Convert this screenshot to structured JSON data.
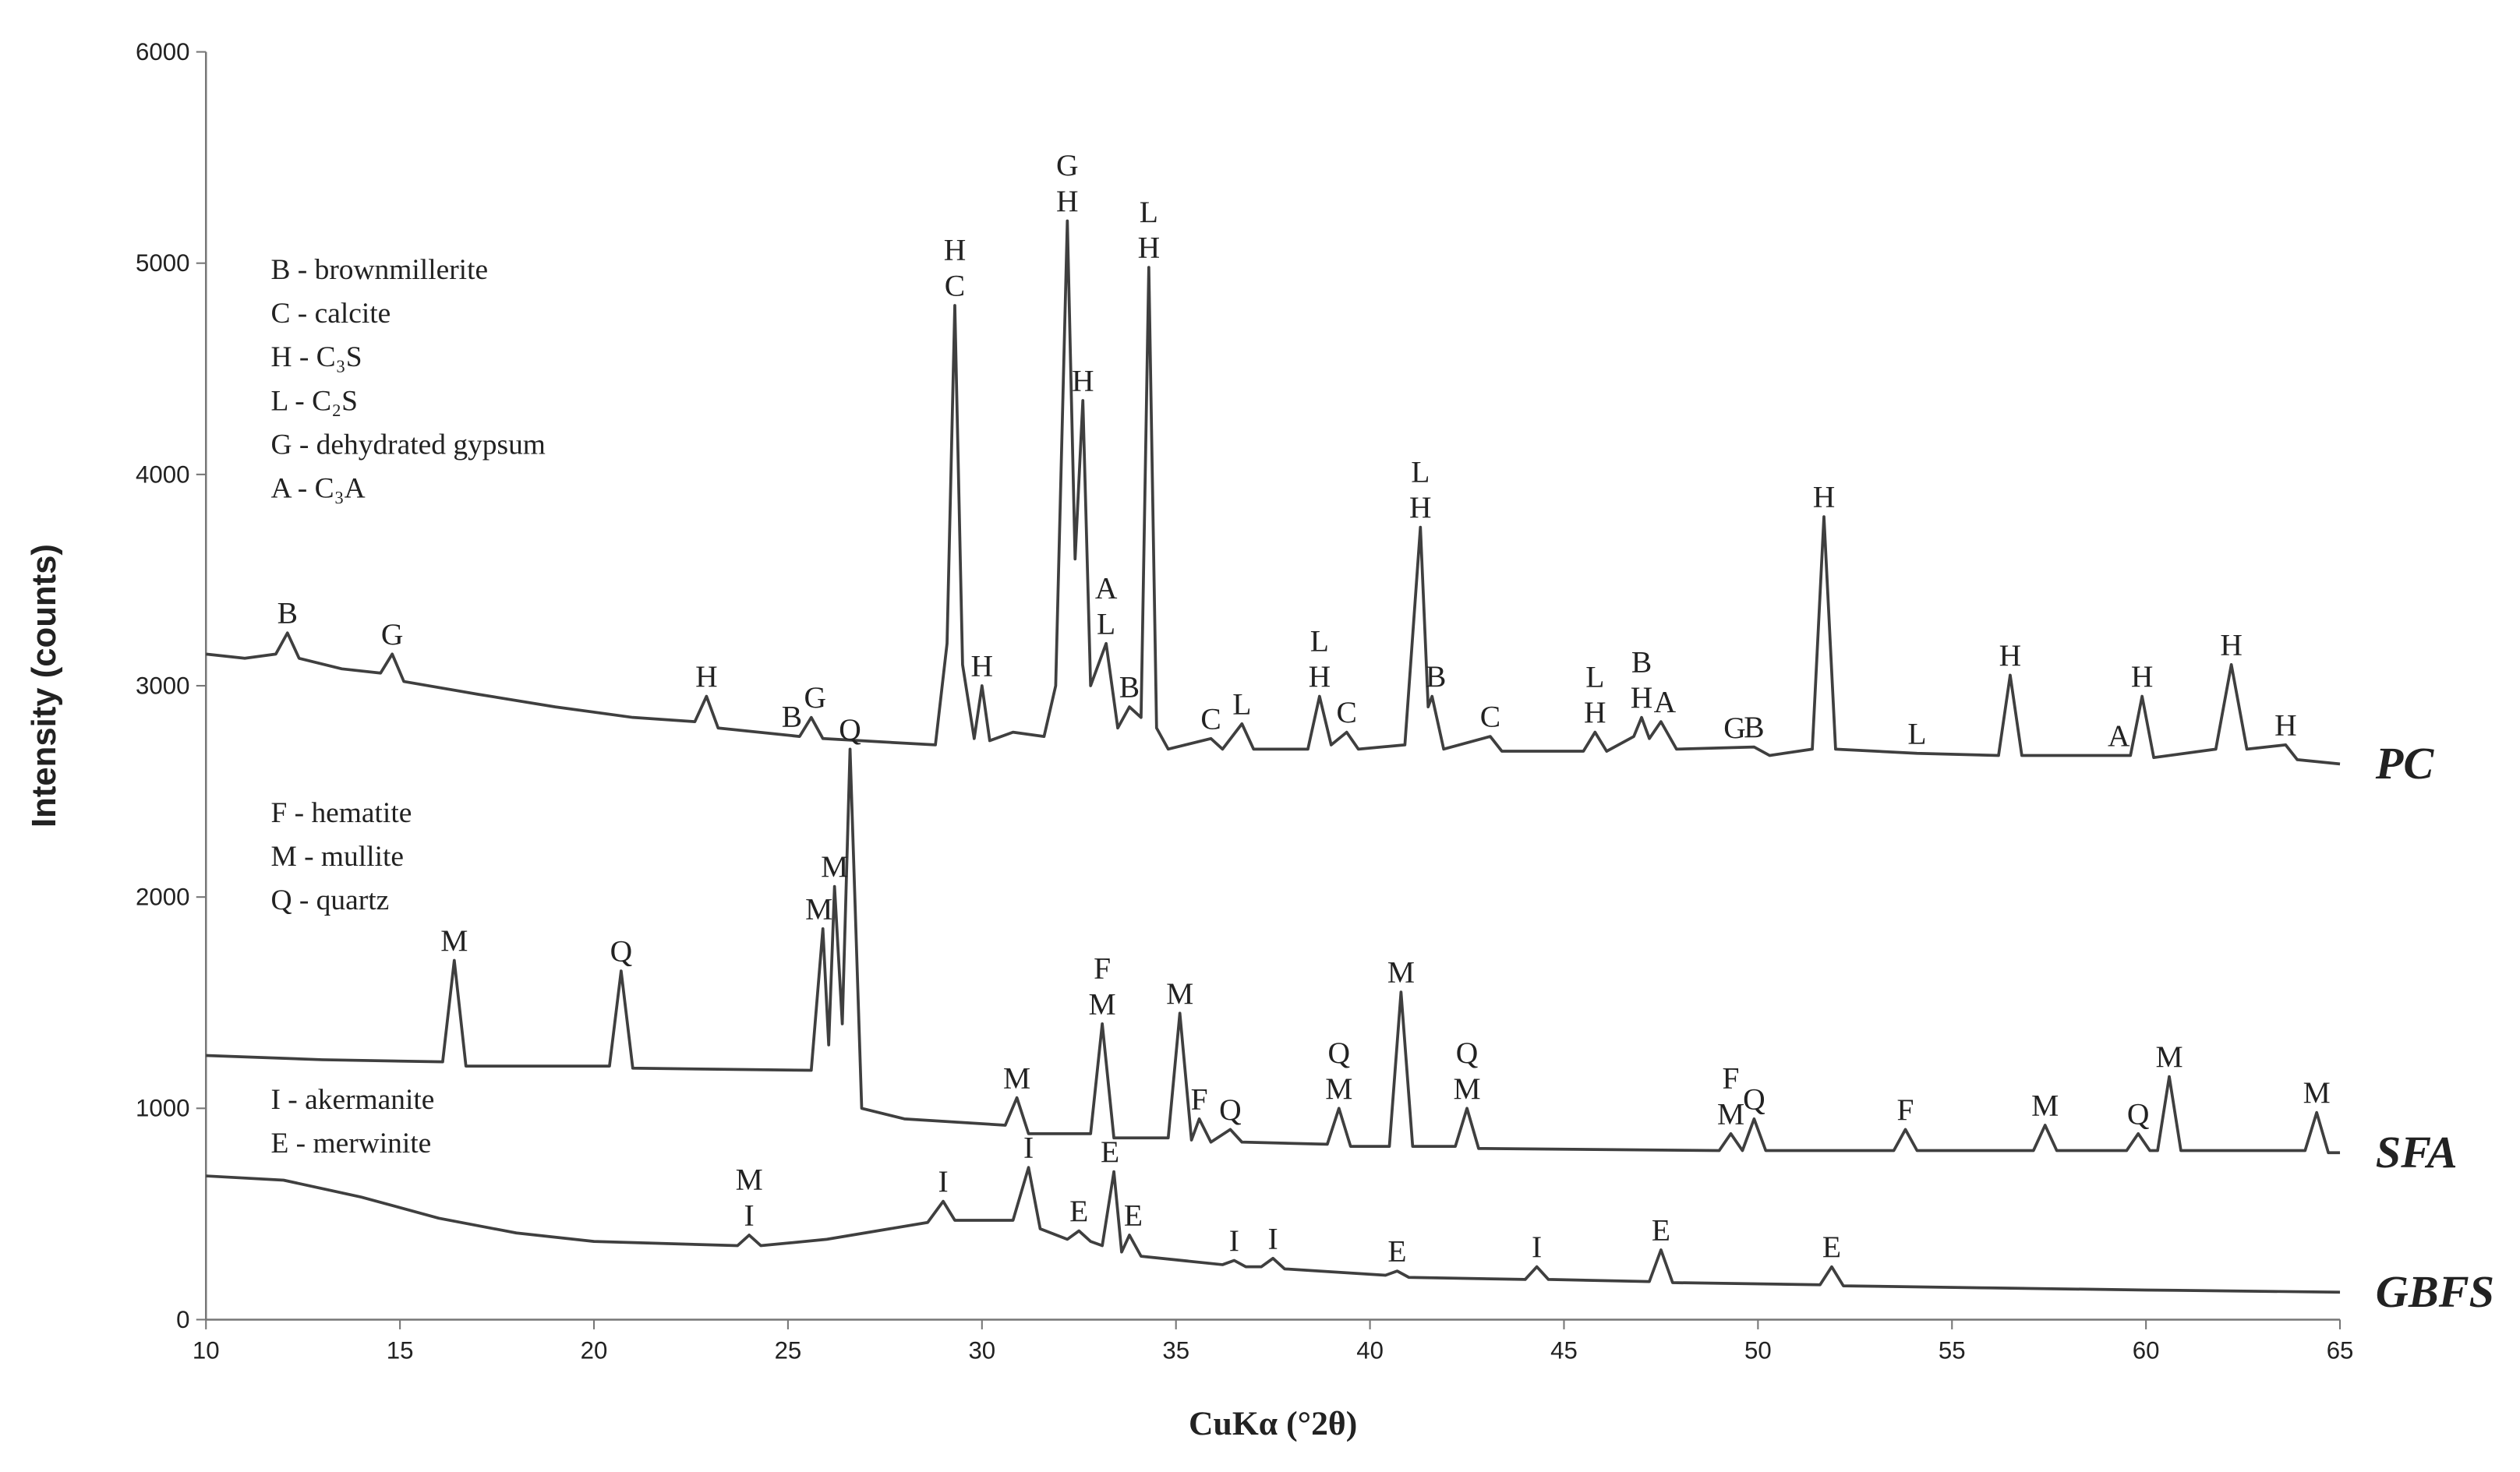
{
  "chart_data": {
    "type": "line",
    "x_label": "CuKα (°2θ)",
    "y_label": "Intensity (counts)",
    "xlim": [
      10,
      65
    ],
    "xticks": [
      10,
      15,
      20,
      25,
      30,
      35,
      40,
      45,
      50,
      55,
      60,
      65
    ],
    "ylim": [
      0,
      6000
    ],
    "yticks": [
      0,
      1000,
      2000,
      3000,
      4000,
      5000,
      6000
    ],
    "grid": false,
    "notes": [
      [
        "B - brownmillerite",
        "C - calcite",
        "H - C₃S",
        "L - C₂S",
        "G - dehydrated gypsum",
        "A - C₃A"
      ],
      [
        "F - hematite",
        "M - mullite",
        "Q - quartz"
      ],
      [
        "I - akermanite",
        "E - merwinite"
      ]
    ],
    "series": [
      {
        "name": "PC",
        "color": "#3f3f3f",
        "x": [
          10,
          11,
          11.8,
          12.1,
          12.4,
          13.5,
          14.5,
          14.8,
          15.1,
          17,
          19,
          21,
          22.6,
          22.9,
          23.2,
          25.3,
          25.6,
          25.9,
          28.8,
          29.1,
          29.3,
          29.5,
          29.8,
          30.0,
          30.2,
          30.8,
          31.6,
          31.9,
          32.2,
          32.4,
          32.6,
          32.8,
          33.2,
          33.5,
          33.8,
          34.1,
          34.3,
          34.5,
          34.8,
          35.9,
          36.2,
          36.7,
          37,
          38.4,
          38.7,
          39.0,
          39.4,
          39.7,
          40.9,
          41.3,
          41.5,
          41.6,
          41.9,
          43.1,
          43.4,
          45.5,
          45.8,
          46.1,
          46.8,
          47.0,
          47.2,
          47.5,
          47.9,
          49.9,
          50.3,
          51.4,
          51.7,
          52.0,
          54.1,
          56.2,
          56.5,
          56.8,
          59.6,
          59.9,
          60.2,
          61.8,
          62.2,
          62.6,
          63.6,
          63.9,
          65
        ],
        "values": [
          3150,
          3130,
          3150,
          3250,
          3130,
          3080,
          3060,
          3150,
          3020,
          2960,
          2900,
          2850,
          2830,
          2950,
          2800,
          2760,
          2850,
          2750,
          2720,
          3200,
          4800,
          3100,
          2750,
          3000,
          2740,
          2780,
          2760,
          3000,
          5200,
          3600,
          4350,
          3000,
          3200,
          2800,
          2900,
          2850,
          4980,
          2800,
          2700,
          2750,
          2700,
          2820,
          2700,
          2700,
          2950,
          2720,
          2780,
          2700,
          2720,
          3750,
          2900,
          2950,
          2700,
          2760,
          2690,
          2690,
          2780,
          2690,
          2760,
          2850,
          2750,
          2830,
          2700,
          2710,
          2670,
          2700,
          3800,
          2700,
          2680,
          2670,
          3050,
          2670,
          2670,
          2950,
          2660,
          2700,
          3100,
          2700,
          2720,
          2650,
          2630
        ],
        "annotations": [
          {
            "x": 12.1,
            "lines": [
              "B"
            ]
          },
          {
            "x": 14.8,
            "lines": [
              "G"
            ]
          },
          {
            "x": 22.9,
            "lines": [
              "H"
            ]
          },
          {
            "x": 25.1,
            "lines": [
              "B"
            ]
          },
          {
            "x": 25.7,
            "lines": [
              "G"
            ]
          },
          {
            "x": 29.3,
            "lines": [
              "H",
              "C"
            ]
          },
          {
            "x": 30.0,
            "lines": [
              "H"
            ]
          },
          {
            "x": 32.2,
            "lines": [
              "G",
              "H"
            ]
          },
          {
            "x": 32.6,
            "lines": [
              "H"
            ]
          },
          {
            "x": 33.2,
            "lines": [
              "A",
              "L"
            ]
          },
          {
            "x": 33.8,
            "lines": [
              "B"
            ]
          },
          {
            "x": 34.3,
            "lines": [
              "L",
              "H"
            ]
          },
          {
            "x": 35.9,
            "lines": [
              "C"
            ]
          },
          {
            "x": 36.7,
            "lines": [
              "L"
            ]
          },
          {
            "x": 38.7,
            "lines": [
              "L",
              "H"
            ]
          },
          {
            "x": 39.4,
            "lines": [
              "C"
            ]
          },
          {
            "x": 41.3,
            "lines": [
              "L",
              "H"
            ]
          },
          {
            "x": 41.7,
            "lines": [
              "B"
            ]
          },
          {
            "x": 43.1,
            "lines": [
              "C"
            ]
          },
          {
            "x": 45.8,
            "lines": [
              "L",
              "H"
            ]
          },
          {
            "x": 47.0,
            "lines": [
              "B",
              "H"
            ]
          },
          {
            "x": 47.6,
            "lines": [
              "A"
            ]
          },
          {
            "x": 49.4,
            "lines": [
              "G"
            ]
          },
          {
            "x": 49.9,
            "lines": [
              "B"
            ]
          },
          {
            "x": 51.7,
            "lines": [
              "H"
            ]
          },
          {
            "x": 54.1,
            "lines": [
              "L"
            ]
          },
          {
            "x": 56.5,
            "lines": [
              "H"
            ]
          },
          {
            "x": 59.3,
            "lines": [
              "A"
            ]
          },
          {
            "x": 59.9,
            "lines": [
              "H"
            ]
          },
          {
            "x": 62.2,
            "lines": [
              "H"
            ]
          },
          {
            "x": 63.6,
            "lines": [
              "H"
            ]
          }
        ]
      },
      {
        "name": "SFA",
        "color": "#3f3f3f",
        "x": [
          10,
          13,
          16.1,
          16.4,
          16.7,
          20.4,
          20.7,
          21,
          25.6,
          25.9,
          26.05,
          26.2,
          26.4,
          26.6,
          26.9,
          28,
          30.6,
          30.9,
          31.2,
          32.8,
          33.1,
          33.4,
          34.8,
          35.1,
          35.4,
          35.6,
          35.9,
          36.4,
          36.7,
          38.9,
          39.2,
          39.5,
          40.5,
          40.8,
          41.1,
          42.2,
          42.5,
          42.8,
          49.0,
          49.3,
          49.6,
          49.9,
          50.2,
          53.5,
          53.8,
          54.1,
          57.1,
          57.4,
          57.7,
          59.5,
          59.8,
          60.1,
          60.3,
          60.6,
          60.9,
          64.1,
          64.4,
          64.7,
          65
        ],
        "values": [
          1250,
          1230,
          1220,
          1700,
          1200,
          1200,
          1650,
          1190,
          1180,
          1850,
          1300,
          2050,
          1400,
          2700,
          1000,
          950,
          920,
          1050,
          880,
          880,
          1400,
          860,
          860,
          1450,
          850,
          950,
          840,
          900,
          840,
          830,
          1000,
          820,
          820,
          1550,
          820,
          820,
          1000,
          810,
          800,
          880,
          800,
          950,
          800,
          800,
          900,
          800,
          800,
          920,
          800,
          800,
          880,
          800,
          800,
          1150,
          800,
          800,
          980,
          790,
          790
        ],
        "annotations": [
          {
            "x": 16.4,
            "lines": [
              "M"
            ]
          },
          {
            "x": 20.7,
            "lines": [
              "Q"
            ]
          },
          {
            "x": 25.8,
            "lines": [
              "M"
            ]
          },
          {
            "x": 26.2,
            "lines": [
              "M"
            ]
          },
          {
            "x": 26.6,
            "lines": [
              "Q"
            ]
          },
          {
            "x": 30.9,
            "lines": [
              "M"
            ]
          },
          {
            "x": 33.1,
            "lines": [
              "F",
              "M"
            ]
          },
          {
            "x": 35.1,
            "lines": [
              "M"
            ]
          },
          {
            "x": 35.6,
            "lines": [
              "F"
            ]
          },
          {
            "x": 36.4,
            "lines": [
              "Q"
            ]
          },
          {
            "x": 39.2,
            "lines": [
              "Q",
              "M"
            ]
          },
          {
            "x": 40.8,
            "lines": [
              "M"
            ]
          },
          {
            "x": 42.5,
            "lines": [
              "Q",
              "M"
            ]
          },
          {
            "x": 49.3,
            "lines": [
              "F",
              "M"
            ]
          },
          {
            "x": 49.9,
            "lines": [
              "Q"
            ]
          },
          {
            "x": 53.8,
            "lines": [
              "F"
            ]
          },
          {
            "x": 57.4,
            "lines": [
              "M"
            ]
          },
          {
            "x": 59.8,
            "lines": [
              "Q"
            ]
          },
          {
            "x": 60.6,
            "lines": [
              "M"
            ]
          },
          {
            "x": 64.4,
            "lines": [
              "M"
            ]
          }
        ]
      },
      {
        "name": "GBFS",
        "color": "#3f3f3f",
        "x": [
          10,
          12,
          14,
          16,
          18,
          20,
          23.7,
          24.0,
          24.3,
          26,
          28.6,
          29.0,
          29.3,
          30.8,
          31.2,
          31.5,
          32.2,
          32.5,
          32.8,
          33.1,
          33.4,
          33.6,
          33.8,
          34.1,
          36.2,
          36.5,
          36.8,
          37.2,
          37.5,
          37.8,
          40.4,
          40.7,
          41,
          44.0,
          44.3,
          44.6,
          47.2,
          47.5,
          47.8,
          51.6,
          51.9,
          52.2,
          56,
          60,
          65
        ],
        "values": [
          680,
          660,
          580,
          480,
          410,
          370,
          350,
          400,
          350,
          380,
          460,
          560,
          470,
          470,
          720,
          430,
          380,
          420,
          370,
          350,
          700,
          320,
          400,
          300,
          260,
          280,
          250,
          250,
          290,
          240,
          210,
          230,
          200,
          190,
          250,
          190,
          180,
          330,
          175,
          165,
          250,
          160,
          150,
          140,
          130
        ],
        "annotations": [
          {
            "x": 24.0,
            "lines": [
              "M",
              "I"
            ]
          },
          {
            "x": 29.0,
            "lines": [
              "I"
            ]
          },
          {
            "x": 31.2,
            "lines": [
              "I"
            ]
          },
          {
            "x": 32.5,
            "lines": [
              "E"
            ]
          },
          {
            "x": 33.3,
            "lines": [
              "E"
            ]
          },
          {
            "x": 33.9,
            "lines": [
              "E"
            ]
          },
          {
            "x": 36.5,
            "lines": [
              "I"
            ]
          },
          {
            "x": 37.5,
            "lines": [
              "I"
            ]
          },
          {
            "x": 40.7,
            "lines": [
              "E"
            ]
          },
          {
            "x": 44.3,
            "lines": [
              "I"
            ]
          },
          {
            "x": 47.5,
            "lines": [
              "E"
            ]
          },
          {
            "x": 51.9,
            "lines": [
              "E"
            ]
          }
        ]
      }
    ]
  }
}
